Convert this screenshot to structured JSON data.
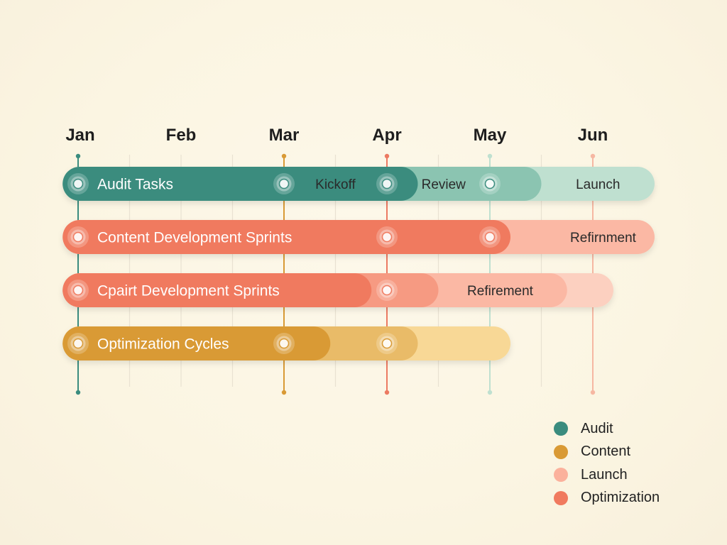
{
  "chart_data": {
    "type": "gantt",
    "months": [
      "Jan",
      "Feb",
      "Mar",
      "Apr",
      "May",
      "Jun"
    ],
    "x_range": [
      "Jan",
      "Jun"
    ],
    "grid": true,
    "rows": [
      {
        "label": "Audit Tasks",
        "color": "#3a8c7e",
        "segments": [
          {
            "start": -0.15,
            "end": 3.3,
            "color": "#3a8c7e"
          },
          {
            "start": 3.3,
            "end": 4.5,
            "color": "#8bc4b1"
          },
          {
            "start": 4.5,
            "end": 5.6,
            "color": "#bfe0d0"
          }
        ],
        "milestones": [
          0,
          2,
          3,
          4
        ],
        "phases": [
          {
            "text": "Kickoff",
            "at": 2.5
          },
          {
            "text": "Review",
            "at": 3.55
          },
          {
            "text": "Launch",
            "at": 5.05
          }
        ]
      },
      {
        "label": "Content Development Sprints",
        "color": "#f07a5e",
        "segments": [
          {
            "start": -0.15,
            "end": 4.2,
            "color": "#f07a5e"
          },
          {
            "start": 4.2,
            "end": 5.6,
            "color": "#fbb8a4"
          }
        ],
        "milestones": [
          0,
          3,
          4
        ],
        "phases": [
          {
            "text": "Refirnment",
            "at": 5.1
          }
        ]
      },
      {
        "label": "Cpairt Development Sprints",
        "color": "#f07a5e",
        "segments": [
          {
            "start": -0.15,
            "end": 2.85,
            "color": "#f07a5e"
          },
          {
            "start": 2.85,
            "end": 3.5,
            "color": "#f69a82"
          },
          {
            "start": 3.5,
            "end": 4.75,
            "color": "#fbb8a4"
          },
          {
            "start": 4.75,
            "end": 5.2,
            "color": "#fcd0c0"
          }
        ],
        "milestones": [
          0,
          3
        ],
        "phases": [
          {
            "text": "Refirement",
            "at": 4.1
          }
        ]
      },
      {
        "label": "Optimization Cycles",
        "color": "#d99a35",
        "segments": [
          {
            "start": -0.15,
            "end": 2.45,
            "color": "#d99a35"
          },
          {
            "start": 2.45,
            "end": 3.3,
            "color": "#e9bb67"
          },
          {
            "start": 3.3,
            "end": 4.2,
            "color": "#f8d896"
          }
        ],
        "milestones": [
          0,
          2,
          3
        ],
        "phases": []
      }
    ],
    "verticals": [
      {
        "month": 0,
        "color": "#3a8c7e"
      },
      {
        "month": 2,
        "color": "#d99a35"
      },
      {
        "month": 3,
        "color": "#ec7a62"
      },
      {
        "month": 4,
        "color": "#bfe0d0"
      },
      {
        "month": 5,
        "color": "#f6b7a2"
      }
    ],
    "legend": [
      {
        "label": "Audit",
        "color": "#3a8c7e"
      },
      {
        "label": "Content",
        "color": "#d99a35"
      },
      {
        "label": "Launch",
        "color": "#fbb19c"
      },
      {
        "label": "Optimization",
        "color": "#f07a5e"
      }
    ],
    "legend_position": "bottom-right"
  }
}
